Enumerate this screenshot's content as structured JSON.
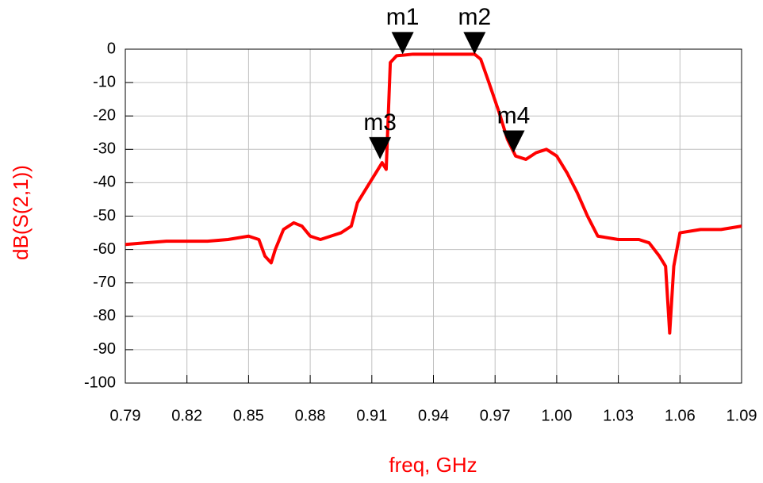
{
  "chart_data": {
    "type": "line",
    "x_label": "freq, GHz",
    "y_label": "dB(S(2,1))",
    "xlim": [
      0.79,
      1.09
    ],
    "xticks": [
      0.79,
      0.82,
      0.85,
      0.88,
      0.91,
      0.94,
      0.97,
      {
        "value": 1,
        "label": "1.00"
      },
      1.03,
      1.06,
      1.09
    ],
    "ylim": [
      -100,
      0
    ],
    "yticks": [
      0,
      -10,
      -20,
      -30,
      -40,
      -50,
      -60,
      -70,
      -80,
      -90,
      -100
    ],
    "grid": true,
    "x": [
      0.79,
      0.8,
      0.81,
      0.82,
      0.83,
      0.84,
      0.85,
      0.855,
      0.858,
      0.861,
      0.863,
      0.867,
      0.872,
      0.876,
      0.88,
      0.885,
      0.89,
      0.895,
      0.9,
      0.903,
      0.908,
      0.912,
      0.915,
      0.917,
      0.918,
      0.919,
      0.922,
      0.93,
      0.94,
      0.95,
      0.96,
      0.963,
      0.967,
      0.972,
      0.976,
      0.98,
      0.985,
      0.99,
      0.995,
      1.0,
      1.005,
      1.01,
      1.015,
      1.02,
      1.03,
      1.04,
      1.045,
      1.05,
      1.053,
      1.055,
      1.057,
      1.06,
      1.07,
      1.08,
      1.09
    ],
    "series": [
      {
        "name": "dB(S(2,1))",
        "color": "#ff0000",
        "values": [
          -58.5,
          -58,
          -57.5,
          -57.5,
          -57.5,
          -57,
          -56,
          -57,
          -62,
          -64,
          -60,
          -54,
          -52,
          -53,
          -56,
          -57,
          -56,
          -55,
          -53,
          -46,
          -41,
          -37,
          -34,
          -36,
          -20,
          -4,
          -2,
          -1.5,
          -1.5,
          -1.5,
          -1.5,
          -3,
          -10,
          -19,
          -27,
          -32,
          -33,
          -31,
          -30,
          -32,
          -37,
          -43,
          -50,
          -56,
          -57,
          -57,
          -58,
          -62,
          -65,
          -85,
          -65,
          -55,
          -54,
          -54,
          -53
        ]
      }
    ],
    "markers": [
      {
        "name": "m1",
        "x": 0.925,
        "y": -1.5
      },
      {
        "name": "m2",
        "x": 0.96,
        "y": -1.5
      },
      {
        "name": "m3",
        "x": 0.914,
        "y": -33
      },
      {
        "name": "m4",
        "x": 0.979,
        "y": -31
      }
    ]
  }
}
